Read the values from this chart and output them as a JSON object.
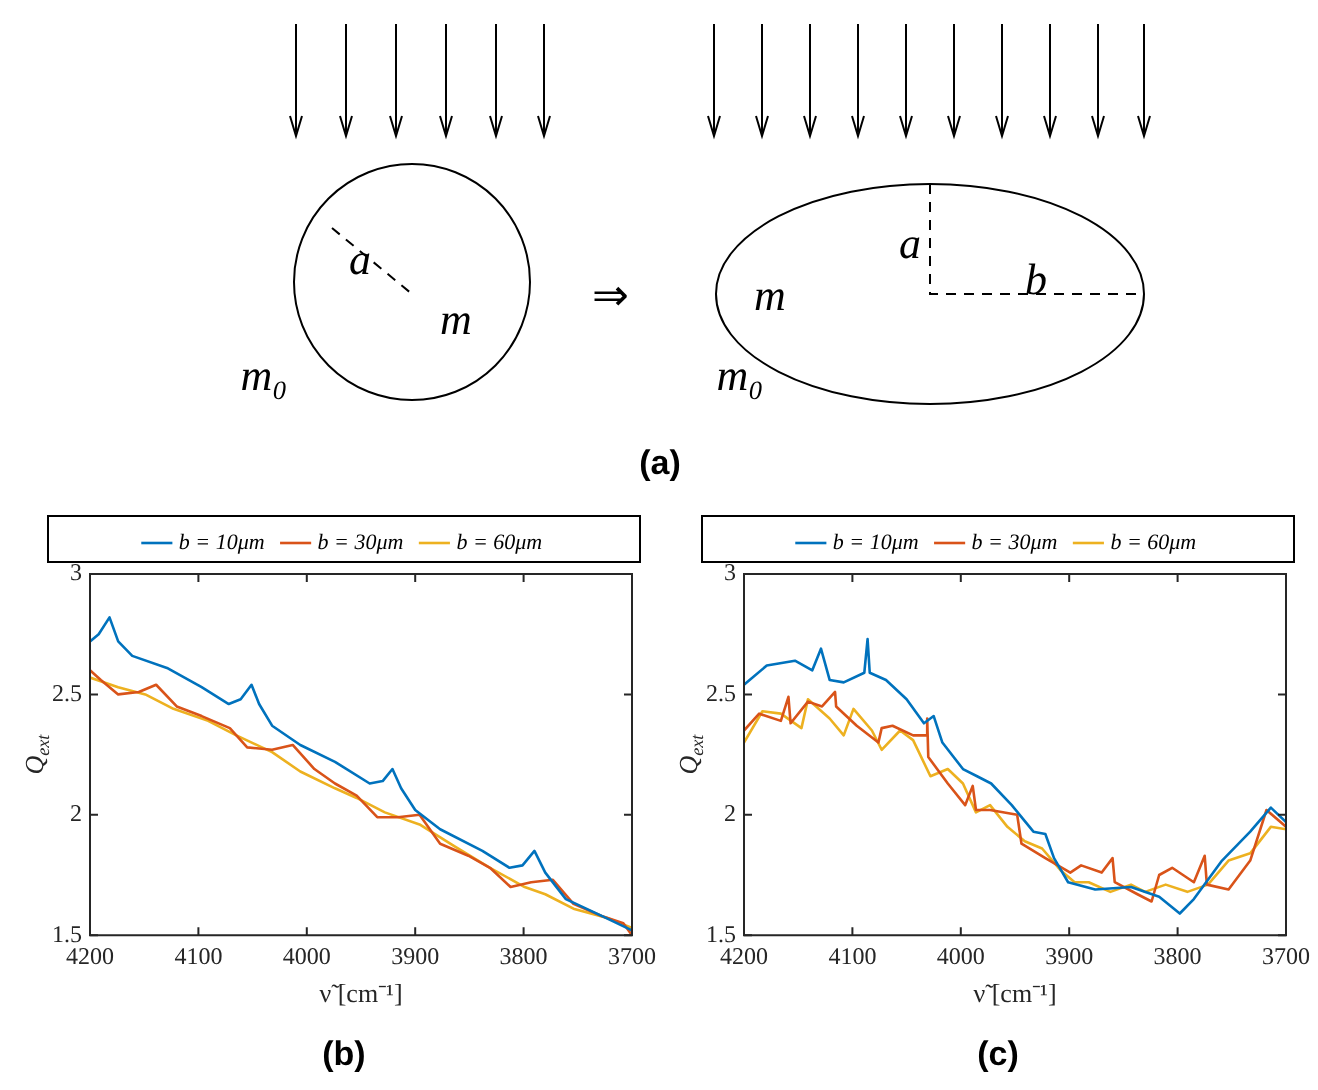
{
  "chart_data": [
    {
      "type": "other",
      "title": "(a)",
      "annotations": [
        "a",
        "m",
        "m₀",
        "⇒",
        "m",
        "a",
        "b",
        "m₀"
      ]
    },
    {
      "type": "line",
      "title": "(b)",
      "xlabel": "ν̃ [cm⁻¹]",
      "ylabel": "Q$_{ext}$",
      "xlim": [
        4200,
        3700
      ],
      "xticks": [
        4200,
        4100,
        4000,
        3900,
        3800,
        3700
      ],
      "ylim": [
        1.5,
        3
      ],
      "yticks": [
        1.5,
        2,
        2.5,
        3
      ],
      "legend": "top",
      "marker": "none",
      "line_style": "solid",
      "series": [
        {
          "name": "b = 10μm",
          "color": "#0072bd",
          "x": [
            4200,
            4192,
            4182,
            4174,
            4161,
            4129,
            4097,
            4072,
            4061,
            4051,
            4044,
            4032,
            4006,
            3974,
            3942,
            3930,
            3921,
            3913,
            3900,
            3877,
            3838,
            3813,
            3801,
            3790,
            3780,
            3761,
            3728,
            3700
          ],
          "values": [
            2.72,
            2.75,
            2.82,
            2.72,
            2.66,
            2.61,
            2.53,
            2.46,
            2.48,
            2.54,
            2.46,
            2.37,
            2.29,
            2.22,
            2.13,
            2.14,
            2.19,
            2.11,
            2.02,
            1.94,
            1.85,
            1.78,
            1.79,
            1.85,
            1.76,
            1.65,
            1.58,
            1.52
          ]
        },
        {
          "name": "b = 30μm",
          "color": "#d95319",
          "x": [
            4200,
            4190,
            4174,
            4155,
            4139,
            4120,
            4097,
            4071,
            4055,
            4032,
            4013,
            3993,
            3974,
            3954,
            3935,
            3916,
            3896,
            3877,
            3851,
            3831,
            3812,
            3793,
            3773,
            3754,
            3728,
            3708,
            3700
          ],
          "values": [
            2.6,
            2.56,
            2.5,
            2.51,
            2.54,
            2.45,
            2.41,
            2.36,
            2.28,
            2.27,
            2.29,
            2.19,
            2.13,
            2.08,
            1.99,
            1.99,
            2.0,
            1.88,
            1.83,
            1.78,
            1.7,
            1.72,
            1.73,
            1.63,
            1.58,
            1.55,
            1.5
          ]
        },
        {
          "name": "b = 60μm",
          "color": "#edb120",
          "x": [
            4200,
            4174,
            4149,
            4123,
            4091,
            4065,
            4032,
            4006,
            3974,
            3954,
            3928,
            3896,
            3864,
            3831,
            3799,
            3780,
            3754,
            3722,
            3700
          ],
          "values": [
            2.57,
            2.53,
            2.5,
            2.44,
            2.39,
            2.33,
            2.26,
            2.18,
            2.11,
            2.07,
            2.01,
            1.96,
            1.87,
            1.78,
            1.7,
            1.67,
            1.61,
            1.57,
            1.53
          ]
        }
      ]
    },
    {
      "type": "line",
      "title": "(c)",
      "xlabel": "ν̃ [cm⁻¹]",
      "ylabel": "Q$_{ext}$",
      "xlim": [
        4200,
        3700
      ],
      "xticks": [
        4200,
        4100,
        4000,
        3900,
        3800,
        3700
      ],
      "ylim": [
        1.5,
        3
      ],
      "yticks": [
        1.5,
        2,
        2.5,
        3
      ],
      "legend": "top",
      "marker": "none",
      "line_style": "solid",
      "series": [
        {
          "name": "b = 10μm",
          "color": "#0072bd",
          "x": [
            4200,
            4179,
            4153,
            4137,
            4129,
            4121,
            4108,
            4089,
            4086,
            4084,
            4069,
            4050,
            4034,
            4025,
            4017,
            3998,
            3985,
            3972,
            3953,
            3933,
            3922,
            3914,
            3901,
            3876,
            3843,
            3817,
            3798,
            3785,
            3759,
            3733,
            3714,
            3700
          ],
          "values": [
            2.54,
            2.62,
            2.64,
            2.6,
            2.69,
            2.56,
            2.55,
            2.59,
            2.73,
            2.59,
            2.56,
            2.48,
            2.38,
            2.41,
            2.3,
            2.19,
            2.16,
            2.13,
            2.04,
            1.93,
            1.92,
            1.82,
            1.72,
            1.69,
            1.7,
            1.66,
            1.59,
            1.65,
            1.81,
            1.93,
            2.03,
            1.97
          ]
        },
        {
          "name": "b = 30μm",
          "color": "#d95319",
          "x": [
            4200,
            4186,
            4166,
            4159,
            4157,
            4141,
            4128,
            4116,
            4115,
            4096,
            4076,
            4073,
            4063,
            4044,
            4032,
            4031,
            4030,
            4012,
            3996,
            3989,
            3986,
            3973,
            3948,
            3944,
            3922,
            3899,
            3889,
            3870,
            3860,
            3858,
            3837,
            3824,
            3817,
            3805,
            3785,
            3775,
            3773,
            3753,
            3733,
            3718,
            3700
          ],
          "values": [
            2.35,
            2.42,
            2.39,
            2.49,
            2.38,
            2.47,
            2.45,
            2.51,
            2.45,
            2.37,
            2.3,
            2.36,
            2.37,
            2.33,
            2.33,
            2.4,
            2.24,
            2.13,
            2.04,
            2.12,
            2.02,
            2.02,
            2.0,
            1.88,
            1.82,
            1.76,
            1.79,
            1.76,
            1.82,
            1.72,
            1.67,
            1.64,
            1.75,
            1.78,
            1.72,
            1.83,
            1.71,
            1.69,
            1.81,
            2.02,
            1.95
          ]
        },
        {
          "name": "b = 60μm",
          "color": "#edb120",
          "x": [
            4200,
            4183,
            4166,
            4147,
            4141,
            4121,
            4108,
            4099,
            4082,
            4073,
            4056,
            4044,
            4028,
            4012,
            3998,
            3986,
            3973,
            3957,
            3941,
            3925,
            3908,
            3895,
            3882,
            3862,
            3843,
            3830,
            3811,
            3791,
            3772,
            3753,
            3733,
            3714,
            3700
          ],
          "values": [
            2.3,
            2.43,
            2.42,
            2.36,
            2.48,
            2.4,
            2.33,
            2.44,
            2.35,
            2.27,
            2.35,
            2.31,
            2.16,
            2.19,
            2.13,
            2.01,
            2.04,
            1.95,
            1.89,
            1.86,
            1.77,
            1.72,
            1.72,
            1.68,
            1.71,
            1.68,
            1.71,
            1.68,
            1.71,
            1.81,
            1.84,
            1.95,
            1.94
          ]
        }
      ]
    }
  ]
}
